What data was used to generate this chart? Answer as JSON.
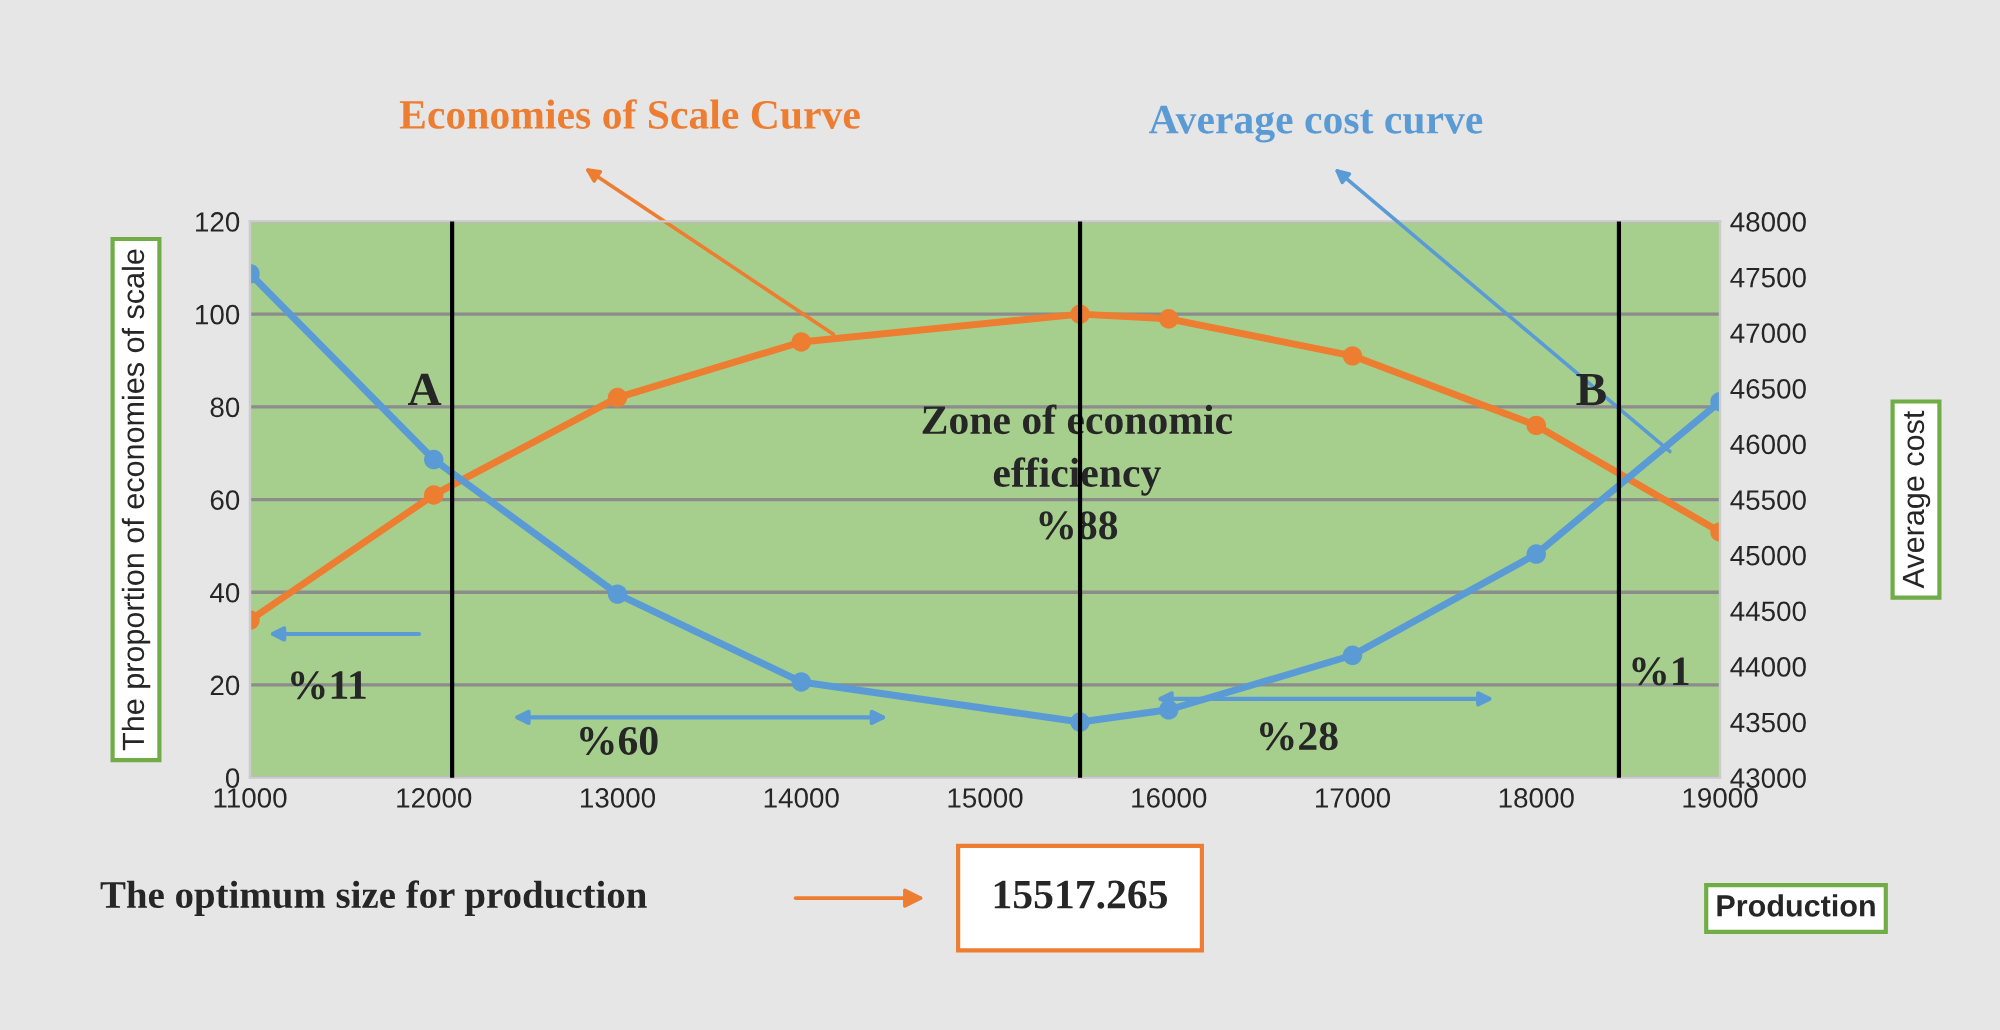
{
  "chart_data": {
    "type": "line",
    "xlabel": "Production",
    "ylabel": "The proportion of economies of scale",
    "y2label": "Average cost",
    "x": [
      11000,
      12000,
      13000,
      14000,
      15517.265,
      16000,
      17000,
      18000,
      19000
    ],
    "series": [
      {
        "name": "Economies of Scale Curve",
        "color": "#ed7d31",
        "values": [
          34,
          61,
          82,
          94,
          100,
          99,
          91,
          76,
          53
        ]
      },
      {
        "name": "Average cost curve",
        "color": "#5b9bd5",
        "axis": "y2",
        "values": [
          47530,
          45860,
          44650,
          43860,
          43500,
          43610,
          44100,
          45010,
          46380
        ]
      }
    ],
    "xlim": [
      11000,
      19000
    ],
    "xticks": [
      11000,
      12000,
      13000,
      14000,
      15000,
      16000,
      17000,
      18000,
      19000
    ],
    "ylim": [
      0,
      120
    ],
    "yticks": [
      0,
      20,
      40,
      60,
      80,
      100,
      120
    ],
    "y2lim": [
      43000,
      48000
    ],
    "y2ticks": [
      43000,
      43500,
      44000,
      44500,
      45000,
      45500,
      46000,
      46500,
      47000,
      47500,
      48000
    ],
    "ref_lines": [
      {
        "axis": "x",
        "value": 12100,
        "label": "A"
      },
      {
        "axis": "x",
        "value": 15517.265
      },
      {
        "axis": "x",
        "value": 18450,
        "label": "B"
      }
    ],
    "annotations": [
      "Zone of economic\nefficiency\n%88",
      "%11",
      "%60",
      "%28",
      "%1",
      "The optimum size for production",
      "15517.265"
    ],
    "grid": "y",
    "marker": "circle",
    "line_style": "solid",
    "legend": false
  }
}
